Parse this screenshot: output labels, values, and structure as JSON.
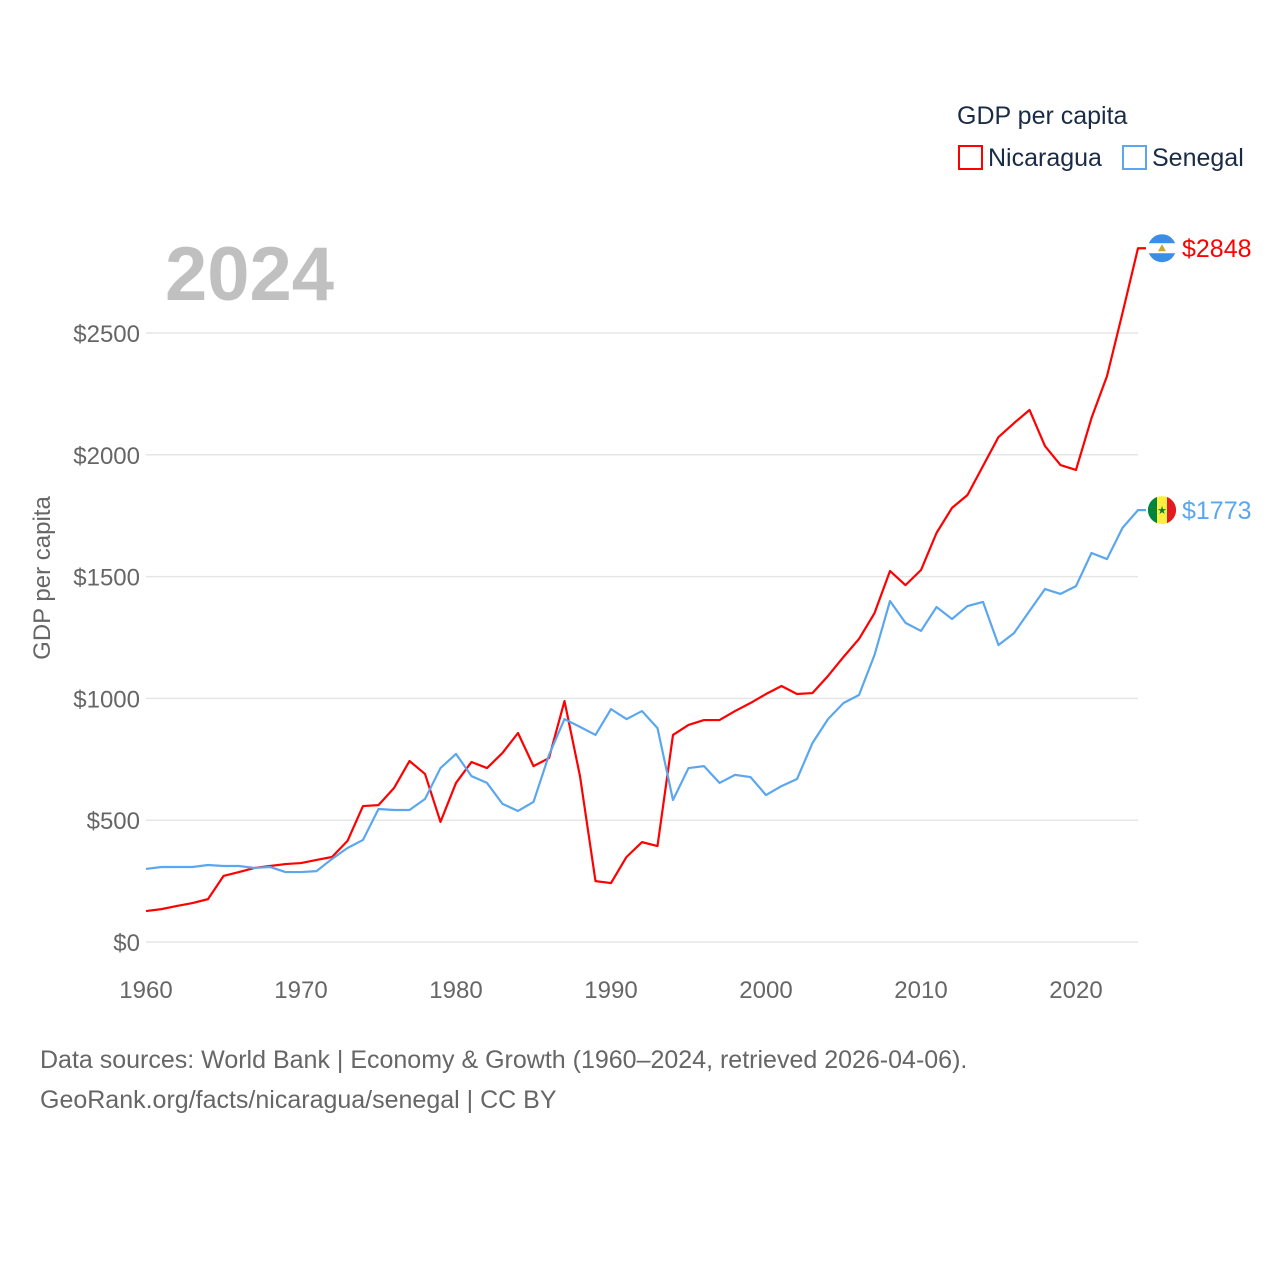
{
  "chart_data": {
    "type": "line",
    "title": "GDP per capita",
    "year_label": "2024",
    "ylabel": "GDP per capita",
    "xlabel": "",
    "xlim": [
      1960,
      2024
    ],
    "ylim": [
      0,
      2848
    ],
    "grid": true,
    "legend_placement": "top-right",
    "x_ticks": [
      "1960",
      "1970",
      "1980",
      "1990",
      "2000",
      "2010",
      "2020"
    ],
    "x_tick_values": [
      1960,
      1970,
      1980,
      1990,
      2000,
      2010,
      2020
    ],
    "y_ticks": [
      "$0",
      "$500",
      "$1000",
      "$1500",
      "$2000",
      "$2500"
    ],
    "y_tick_values": [
      0,
      500,
      1000,
      1500,
      2000,
      2500
    ],
    "x": [
      1960,
      1961,
      1962,
      1963,
      1964,
      1965,
      1966,
      1967,
      1968,
      1969,
      1970,
      1971,
      1972,
      1973,
      1974,
      1975,
      1976,
      1977,
      1978,
      1979,
      1980,
      1981,
      1982,
      1983,
      1984,
      1985,
      1986,
      1987,
      1988,
      1989,
      1990,
      1991,
      1992,
      1993,
      1994,
      1995,
      1996,
      1997,
      1998,
      1999,
      2000,
      2001,
      2002,
      2003,
      2004,
      2005,
      2006,
      2007,
      2008,
      2009,
      2010,
      2011,
      2012,
      2013,
      2014,
      2015,
      2016,
      2017,
      2018,
      2019,
      2020,
      2021,
      2022,
      2023,
      2024
    ],
    "series": [
      {
        "name": "Nicaragua",
        "color": "#ff0000",
        "end_label": "$2848",
        "flag": "nicaragua-flag",
        "values": [
          127,
          135,
          148,
          160,
          176,
          271,
          287,
          304,
          312,
          320,
          324,
          337,
          349,
          415,
          558,
          562,
          632,
          743,
          690,
          493,
          653,
          739,
          714,
          776,
          858,
          722,
          755,
          989,
          681,
          250,
          242,
          349,
          410,
          394,
          850,
          891,
          911,
          911,
          948,
          981,
          1018,
          1051,
          1018,
          1022,
          1092,
          1170,
          1244,
          1350,
          1523,
          1465,
          1527,
          1679,
          1782,
          1835,
          1954,
          2073,
          2130,
          2184,
          2036,
          1958,
          1938,
          2151,
          2323,
          2582,
          2848
        ]
      },
      {
        "name": "Senegal",
        "color": "#5ba7ef",
        "end_label": "$1773",
        "flag": "senegal-flag",
        "values": [
          300,
          308,
          308,
          308,
          316,
          312,
          312,
          304,
          308,
          287,
          287,
          291,
          341,
          386,
          419,
          546,
          542,
          542,
          587,
          714,
          772,
          681,
          653,
          567,
          538,
          575,
          768,
          915,
          883,
          850,
          956,
          915,
          948,
          878,
          583,
          714,
          722,
          653,
          686,
          677,
          603,
          640,
          669,
          817,
          915,
          981,
          1014,
          1178,
          1400,
          1310,
          1277,
          1375,
          1326,
          1379,
          1396,
          1219,
          1268,
          1359,
          1449,
          1429,
          1461,
          1597,
          1572,
          1700,
          1773
        ]
      }
    ]
  },
  "footer": {
    "line1": "Data sources: World Bank | Economy & Growth (1960–2024, retrieved 2026-04-06).",
    "line2": "GeoRank.org/facts/nicaragua/senegal | CC BY"
  }
}
